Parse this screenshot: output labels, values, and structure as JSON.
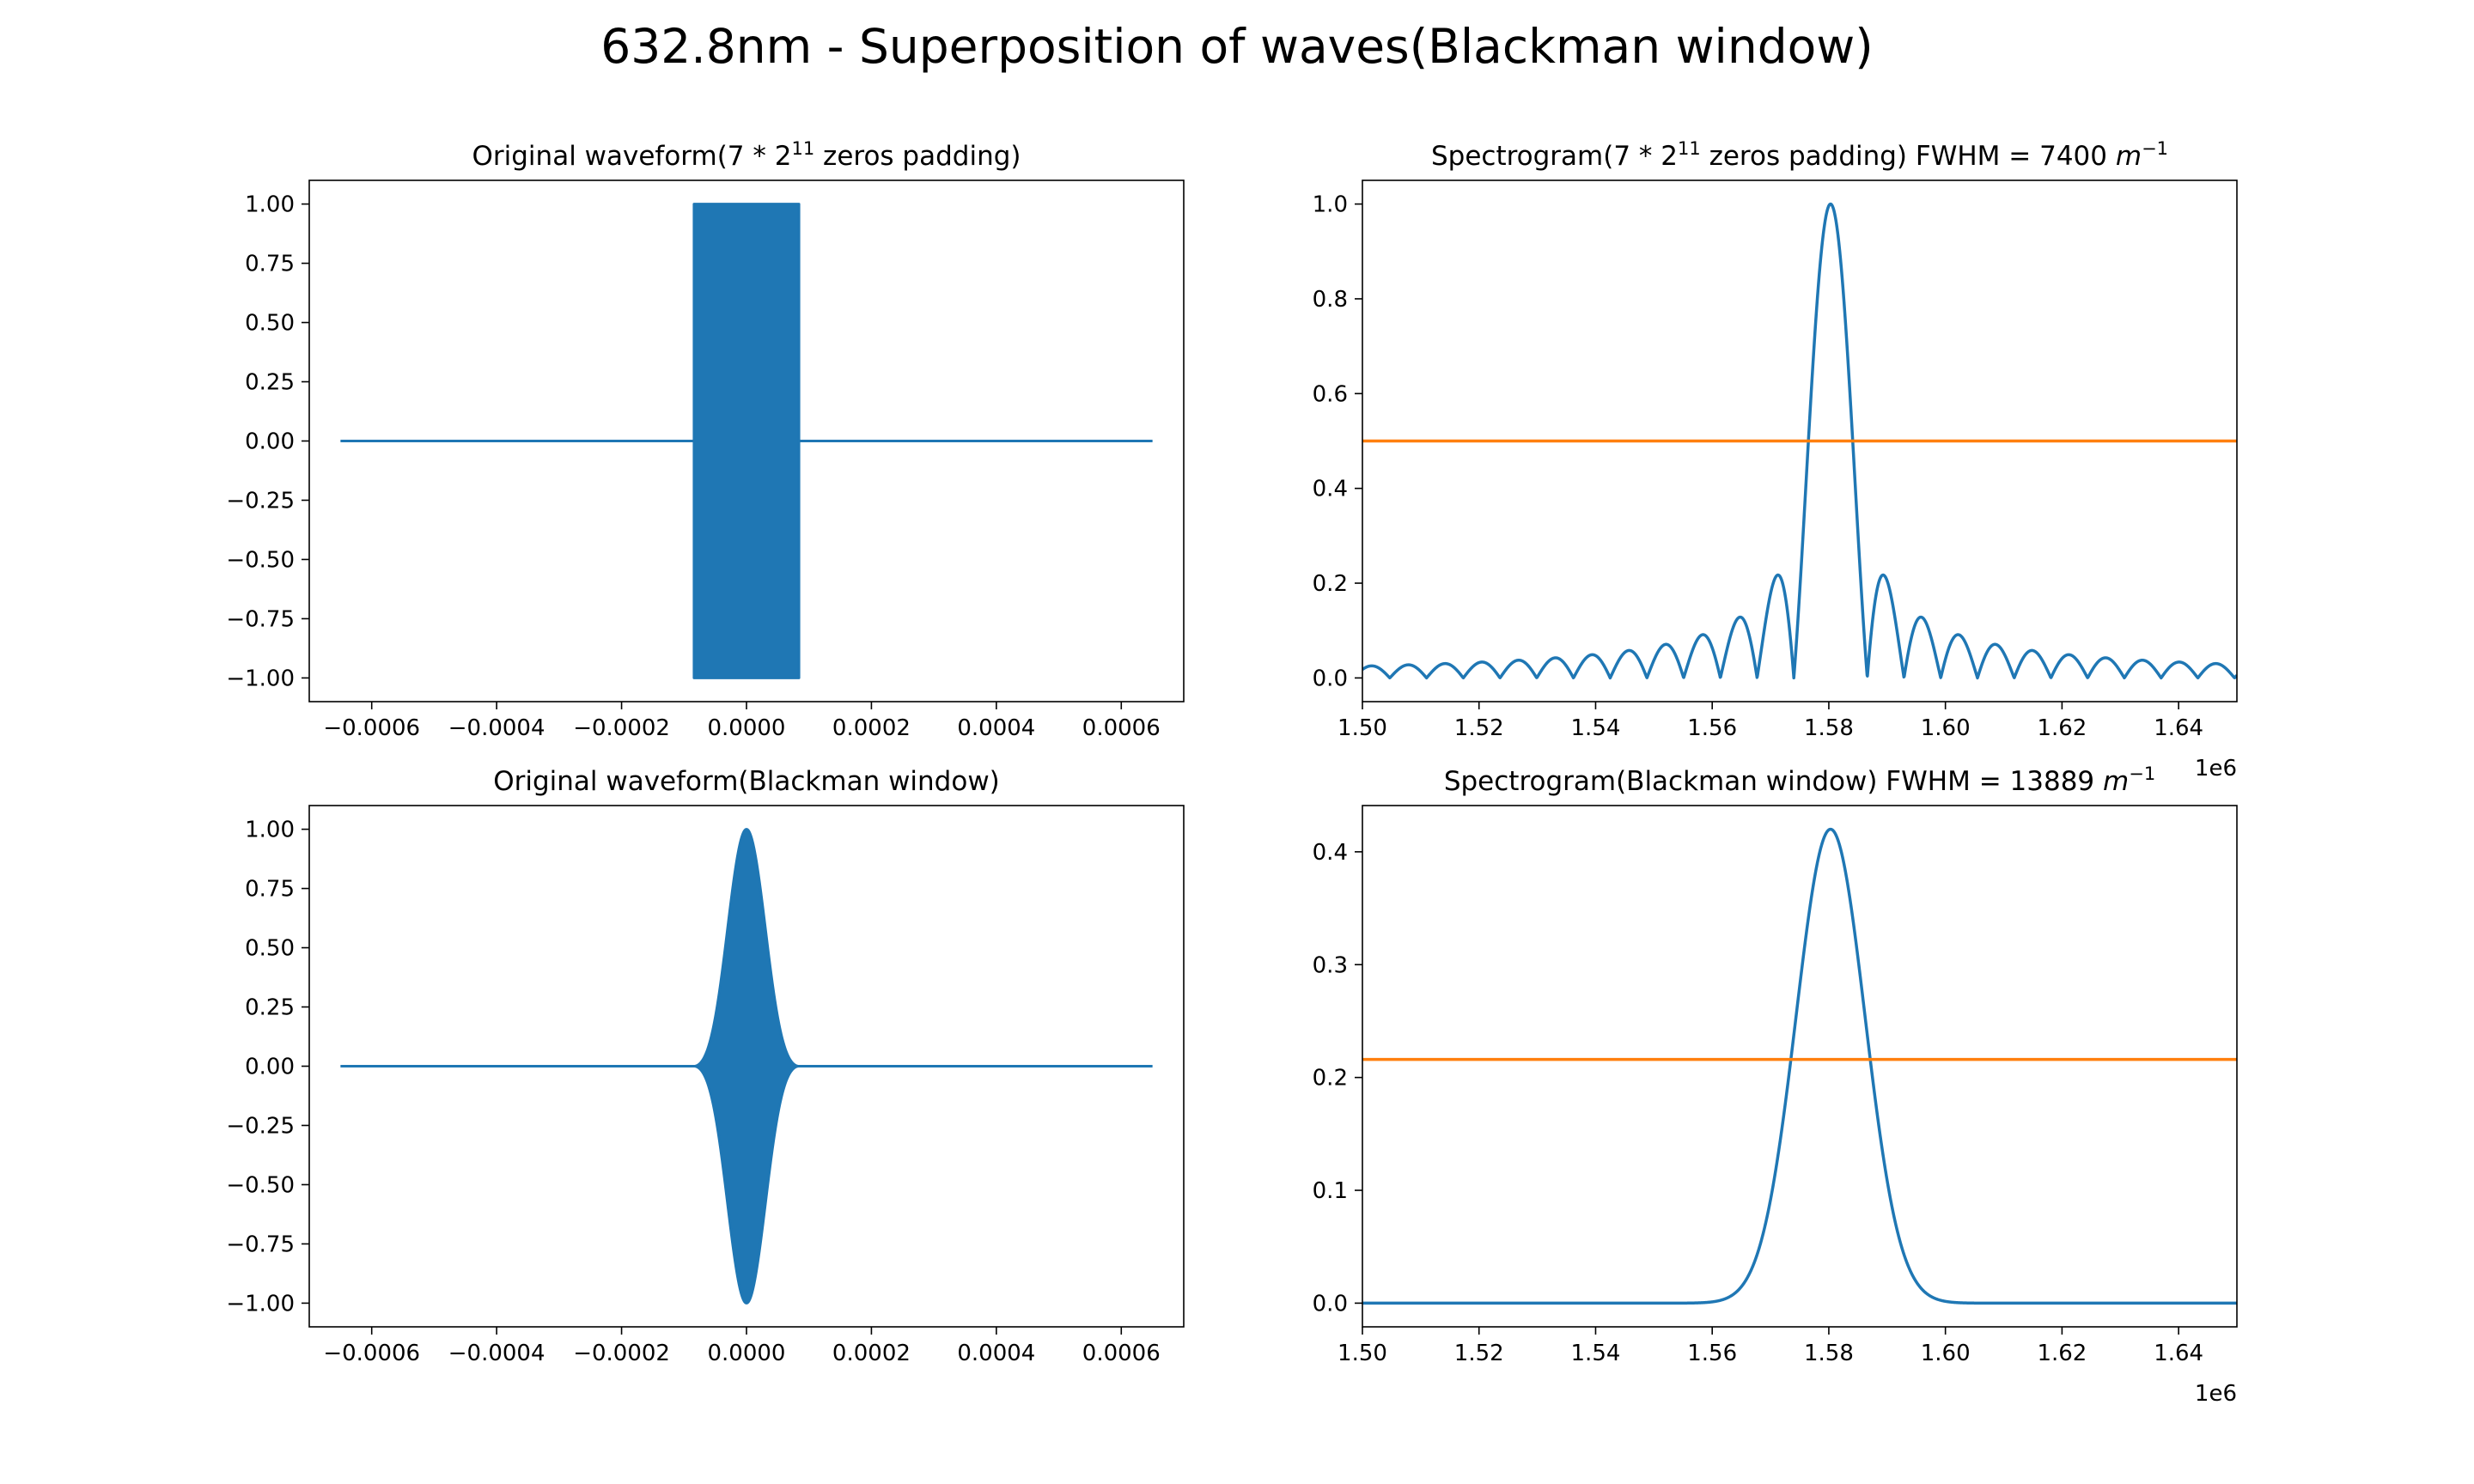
{
  "figure": {
    "suptitle": "632.8nm - Superposition of waves(Blackman window)"
  },
  "colors": {
    "blue": "#1f77b4",
    "orange": "#ff7f0e",
    "axis": "#000000",
    "background": "#ffffff"
  },
  "chart_data": [
    {
      "id": "tl",
      "type": "line",
      "title_parts": [
        "Original waveform(7 * 2",
        "11",
        " zeros padding)"
      ],
      "xlabel": "",
      "ylabel": "",
      "xlim": [
        -0.0007,
        0.0007
      ],
      "ylim": [
        -1.1,
        1.1
      ],
      "xticks": [
        -0.0006,
        -0.0004,
        -0.0002,
        0.0,
        0.0002,
        0.0004,
        0.0006
      ],
      "xtick_labels": [
        "−0.0006",
        "−0.0004",
        "−0.0002",
        "0.0000",
        "0.0002",
        "0.0004",
        "0.0006"
      ],
      "yticks": [
        1.0,
        0.75,
        0.5,
        0.25,
        0.0,
        -0.25,
        -0.5,
        -0.75,
        -1.0
      ],
      "ytick_labels": [
        "1.00",
        "0.75",
        "0.50",
        "0.25",
        "0.00",
        "−0.25",
        "−0.50",
        "−0.75",
        "−1.00"
      ],
      "offset_text": "",
      "grid": false,
      "series": [
        {
          "kind": "signal",
          "color": "blue",
          "x_range": [
            -0.00065,
            0.00065
          ],
          "window": "rect",
          "window_halfwidth": 8.4e-05,
          "amplitude": 1.0
        }
      ]
    },
    {
      "id": "tr",
      "type": "line",
      "title_parts": [
        "Spectrogram(7 * 2",
        "11",
        " zeros padding) FWHM = 7400 ",
        "m",
        "−1"
      ],
      "xlabel": "",
      "ylabel": "",
      "xlim": [
        1.5,
        1.65
      ],
      "ylim": [
        -0.05,
        1.05
      ],
      "xticks": [
        1.5,
        1.52,
        1.54,
        1.56,
        1.58,
        1.6,
        1.62,
        1.64
      ],
      "xtick_labels": [
        "1.50",
        "1.52",
        "1.54",
        "1.56",
        "1.58",
        "1.60",
        "1.62",
        "1.64"
      ],
      "yticks": [
        0.0,
        0.2,
        0.4,
        0.6,
        0.8,
        1.0
      ],
      "ytick_labels": [
        "0.0",
        "0.2",
        "0.4",
        "0.6",
        "0.8",
        "1.0"
      ],
      "offset_text": "1e6",
      "grid": false,
      "series": [
        {
          "kind": "spectrum",
          "color": "blue",
          "peak_x": 1.5803,
          "peak": 1.0,
          "shape": "sinc",
          "null_spacing": 0.0063
        },
        {
          "kind": "hline",
          "color": "orange",
          "y": 0.5
        }
      ]
    },
    {
      "id": "bl",
      "type": "line",
      "title_parts": [
        "Original waveform(Blackman window)"
      ],
      "xlabel": "",
      "ylabel": "",
      "xlim": [
        -0.0007,
        0.0007
      ],
      "ylim": [
        -1.1,
        1.1
      ],
      "xticks": [
        -0.0006,
        -0.0004,
        -0.0002,
        0.0,
        0.0002,
        0.0004,
        0.0006
      ],
      "xtick_labels": [
        "−0.0006",
        "−0.0004",
        "−0.0002",
        "0.0000",
        "0.0002",
        "0.0004",
        "0.0006"
      ],
      "yticks": [
        1.0,
        0.75,
        0.5,
        0.25,
        0.0,
        -0.25,
        -0.5,
        -0.75,
        -1.0
      ],
      "ytick_labels": [
        "1.00",
        "0.75",
        "0.50",
        "0.25",
        "0.00",
        "−0.25",
        "−0.50",
        "−0.75",
        "−1.00"
      ],
      "offset_text": "",
      "grid": false,
      "series": [
        {
          "kind": "signal",
          "color": "blue",
          "x_range": [
            -0.00065,
            0.00065
          ],
          "window": "blackman",
          "window_halfwidth": 8.4e-05,
          "amplitude": 1.0
        }
      ]
    },
    {
      "id": "br",
      "type": "line",
      "title_parts": [
        "Spectrogram(Blackman window) FWHM = 13889 ",
        "m",
        "−1"
      ],
      "xlabel": "",
      "ylabel": "",
      "xlim": [
        1.5,
        1.65
      ],
      "ylim": [
        -0.021,
        0.441
      ],
      "xticks": [
        1.5,
        1.52,
        1.54,
        1.56,
        1.58,
        1.6,
        1.62,
        1.64
      ],
      "xtick_labels": [
        "1.50",
        "1.52",
        "1.54",
        "1.56",
        "1.58",
        "1.60",
        "1.62",
        "1.64"
      ],
      "yticks": [
        0.0,
        0.1,
        0.2,
        0.3,
        0.4
      ],
      "ytick_labels": [
        "0.0",
        "0.1",
        "0.2",
        "0.3",
        "0.4"
      ],
      "offset_text": "1e6",
      "grid": false,
      "series": [
        {
          "kind": "spectrum",
          "color": "blue",
          "peak_x": 1.5803,
          "peak": 0.42,
          "shape": "gauss",
          "fwhm": 0.0139
        },
        {
          "kind": "hline",
          "color": "orange",
          "y": 0.216
        }
      ]
    }
  ]
}
